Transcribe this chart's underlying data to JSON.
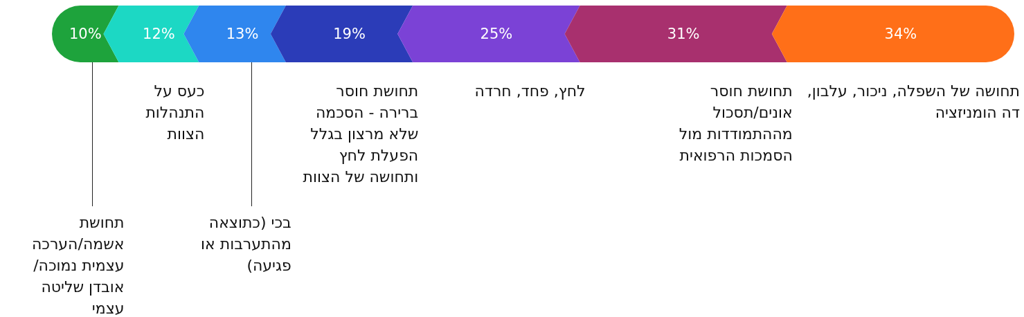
{
  "chart_data": {
    "type": "other",
    "categories": [
      "תחושת אשמה/הערכה עצמית נמוכה/ אובדן שליטה עצמי",
      "כעס על התנהלות הצוות",
      "בכי (כתוצאה מהתערבות או פגיעה)",
      "תחושת חוסר ברירה - הסכמה שלא מרצון בגלל הפעלת לחץ ותחושה של הצוות",
      "לחץ, פחד, חרדה",
      "תחושת חוסר אונים/תסכול מההתמודדות מול הסמכות הרפואית",
      "תחושה של השפלה, ניכור, עלבון, דה הומניזציה"
    ],
    "values": [
      10,
      12,
      13,
      19,
      25,
      31,
      34
    ],
    "value_labels": [
      "10%",
      "12%",
      "13%",
      "19%",
      "25%",
      "31%",
      "34%"
    ],
    "colors": [
      "#1ea33c",
      "#1cd8c4",
      "#2f86ee",
      "#2b3cb8",
      "#7b42d6",
      "#a8306e",
      "#ff6f18"
    ]
  }
}
